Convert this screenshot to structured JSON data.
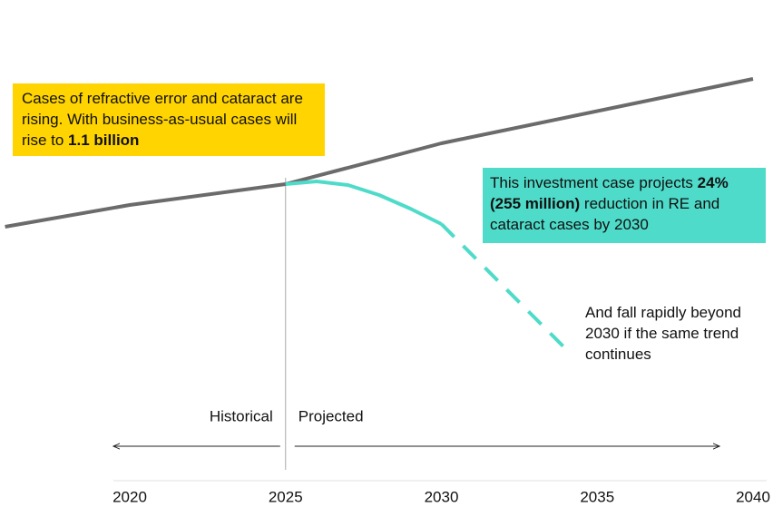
{
  "chart_data": {
    "type": "line",
    "xlim": [
      2016,
      2040
    ],
    "xticks": [
      2020,
      2025,
      2030,
      2035,
      2040
    ],
    "ylim": [
      0,
      100
    ],
    "series": [
      {
        "color": "#6b6b6b",
        "style": "solid",
        "x": [
          2016,
          2020,
          2025,
          2030,
          2040
        ],
        "values": [
          47.5,
          53.5,
          59.25,
          70.5,
          88.25
        ]
      },
      {
        "color": "#4fdbc9",
        "style": "solid",
        "x": [
          2025,
          2026,
          2027,
          2028,
          2029,
          2030
        ],
        "values": [
          59.25,
          60,
          59,
          56.25,
          52.5,
          48.25
        ]
      },
      {
        "color": "#4fdbc9",
        "style": "dashed",
        "x": [
          2030,
          2034
        ],
        "values": [
          48.25,
          13.75
        ]
      }
    ],
    "annotations": {
      "rising": [
        "Cases of refractive error and cataract are rising. With business-as-usual cases will rise to ",
        "1.1 billion"
      ],
      "investment": [
        "This investment case projects ",
        "24% (255 million)",
        " reduction in RE and cataract cases by 2030"
      ],
      "fall": "And fall rapidly beyond 2030 if the same trend continues",
      "historical": "Historical",
      "projected": "Projected"
    }
  }
}
